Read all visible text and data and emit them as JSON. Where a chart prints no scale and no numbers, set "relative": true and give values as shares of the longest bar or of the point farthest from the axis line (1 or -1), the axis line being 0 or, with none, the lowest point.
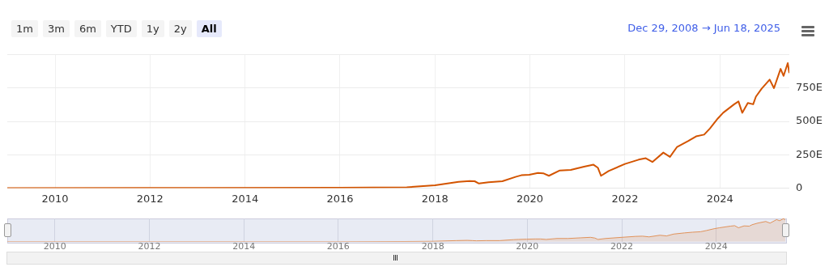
{
  "chart_data": [
    {
      "type": "line",
      "subtitle": "Dec 29, 2008 → Jun 18, 2025",
      "annotations": [
        "1m",
        "3m",
        "6m",
        "YTD",
        "1y",
        "2y",
        "All"
      ],
      "x": [
        "2008-12-29",
        "2012-01-01",
        "2016-01-01",
        "2017-05-29",
        "2018-01-01",
        "2018-07-01",
        "2018-09-24",
        "2018-11-02",
        "2018-12-05",
        "2019-02-17",
        "2019-06-03",
        "2019-09-17",
        "2019-10-27",
        "2019-12-27",
        "2020-03-03",
        "2020-04-12",
        "2020-05-26",
        "2020-08-18",
        "2020-11-10",
        "2021-02-20",
        "2021-05-04",
        "2021-06-06",
        "2021-07-01",
        "2021-08-28",
        "2022-01-01",
        "2022-04-16",
        "2022-06-10",
        "2022-07-31",
        "2022-10-23",
        "2022-12-13",
        "2023-02-06",
        "2023-05-01",
        "2023-07-02",
        "2023-09-02",
        "2023-10-16",
        "2023-12-16",
        "2024-01-26",
        "2024-04-20",
        "2024-05-23",
        "2024-06-21",
        "2024-08-03",
        "2024-09-13",
        "2024-10-04",
        "2024-11-17",
        "2025-01-18",
        "2025-02-20",
        "2025-04-12",
        "2025-05-05",
        "2025-06-06",
        "2025-06-18"
      ],
      "series": [
        {
          "color": "#d35400",
          "values": [
            0,
            1,
            3,
            6,
            21,
            47,
            53,
            51,
            34,
            43,
            51,
            85,
            96,
            100,
            113,
            111,
            92,
            132,
            136,
            160,
            175,
            153,
            92,
            128,
            181,
            213,
            224,
            196,
            266,
            234,
            309,
            352,
            388,
            401,
            447,
            522,
            565,
            629,
            650,
            565,
            639,
            629,
            686,
            746,
            814,
            750,
            895,
            842,
            938,
            863
          ]
        }
      ],
      "xlim": [
        "2008-12-29",
        "2025-06-18"
      ],
      "xticks": [
        {
          "value": "2010-01-01",
          "label": "2010"
        },
        {
          "value": "2012-01-01",
          "label": "2012"
        },
        {
          "value": "2014-01-01",
          "label": "2014"
        },
        {
          "value": "2016-01-01",
          "label": "2016"
        },
        {
          "value": "2018-01-01",
          "label": "2018"
        },
        {
          "value": "2020-01-01",
          "label": "2020"
        },
        {
          "value": "2022-01-01",
          "label": "2022"
        },
        {
          "value": "2024-01-01",
          "label": "2024"
        }
      ],
      "ylim": [
        0,
        1000
      ],
      "yticks": [
        0,
        {
          "value": 250,
          "label": "250E"
        },
        {
          "value": 500,
          "label": "500E"
        },
        {
          "value": 750,
          "label": "750E"
        },
        {
          "value": 1000,
          "label": null
        }
      ],
      "grid": true,
      "legend": false
    },
    {
      "type": "area",
      "x": [
        "2008-12-29",
        "2012-01-01",
        "2016-01-01",
        "2017-05-29",
        "2018-01-01",
        "2018-07-01",
        "2018-09-24",
        "2018-11-02",
        "2018-12-05",
        "2019-02-17",
        "2019-06-03",
        "2019-09-17",
        "2019-10-27",
        "2019-12-27",
        "2020-03-03",
        "2020-04-12",
        "2020-05-26",
        "2020-08-18",
        "2020-11-10",
        "2021-02-20",
        "2021-05-04",
        "2021-06-06",
        "2021-07-01",
        "2021-08-28",
        "2022-01-01",
        "2022-04-16",
        "2022-06-10",
        "2022-07-31",
        "2022-10-23",
        "2022-12-13",
        "2023-02-06",
        "2023-05-01",
        "2023-07-02",
        "2023-09-02",
        "2023-10-16",
        "2023-12-16",
        "2024-01-26",
        "2024-04-20",
        "2024-05-23",
        "2024-06-21",
        "2024-08-03",
        "2024-09-13",
        "2024-10-04",
        "2024-11-17",
        "2025-01-18",
        "2025-02-20",
        "2025-04-12",
        "2025-05-05",
        "2025-06-06",
        "2025-06-18"
      ],
      "series": [
        {
          "color": "#e0925a",
          "values": [
            0,
            0,
            0,
            0.01,
            0.02,
            0.05,
            0.06,
            0.05,
            0.04,
            0.05,
            0.05,
            0.09,
            0.1,
            0.11,
            0.12,
            0.12,
            0.1,
            0.14,
            0.14,
            0.17,
            0.19,
            0.16,
            0.1,
            0.14,
            0.19,
            0.23,
            0.24,
            0.21,
            0.28,
            0.25,
            0.33,
            0.38,
            0.41,
            0.43,
            0.48,
            0.56,
            0.6,
            0.67,
            0.69,
            0.6,
            0.68,
            0.67,
            0.73,
            0.8,
            0.87,
            0.8,
            0.95,
            0.9,
            1,
            0.92
          ]
        }
      ],
      "relative": true,
      "xlim": [
        "2008-12-29",
        "2025-06-18"
      ],
      "xticks": [
        {
          "value": "2010-01-01",
          "label": "2010"
        },
        {
          "value": "2012-01-01",
          "label": "2012"
        },
        {
          "value": "2014-01-01",
          "label": "2014"
        },
        {
          "value": "2016-01-01",
          "label": "2016"
        },
        {
          "value": "2018-01-01",
          "label": "2018"
        },
        {
          "value": "2020-01-01",
          "label": "2020"
        },
        {
          "value": "2022-01-01",
          "label": "2022"
        },
        {
          "value": "2024-01-01",
          "label": "2024"
        }
      ],
      "tick_labels": "x",
      "grid": "x",
      "legend": false
    }
  ]
}
